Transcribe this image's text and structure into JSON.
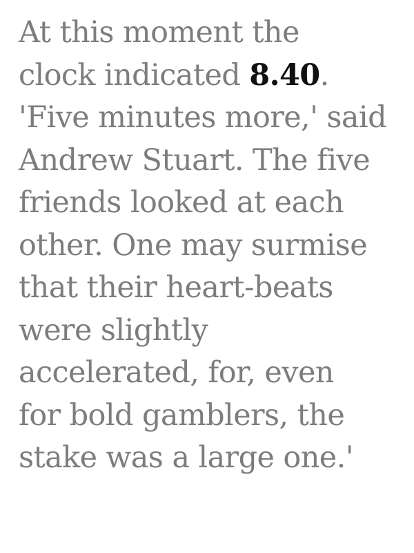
{
  "passage": {
    "line_1": "At this moment the",
    "line_2_before": "clock indicated ",
    "line_2_highlight": "8.40",
    "line_2_after": ".",
    "line_3": "'Five minutes more,' said",
    "line_4": "Andrew Stuart. The five",
    "line_5": "friends looked at each",
    "line_6": "other. One may surmise",
    "line_7": "that their heart-beats",
    "line_8": "were slightly",
    "line_9": "accelerated, for, even",
    "line_10": "for bold gamblers, the",
    "line_11": "stake was a large one.'"
  },
  "colors": {
    "text": "#7d7d7d",
    "highlight": "#111111",
    "background": "#ffffff"
  }
}
